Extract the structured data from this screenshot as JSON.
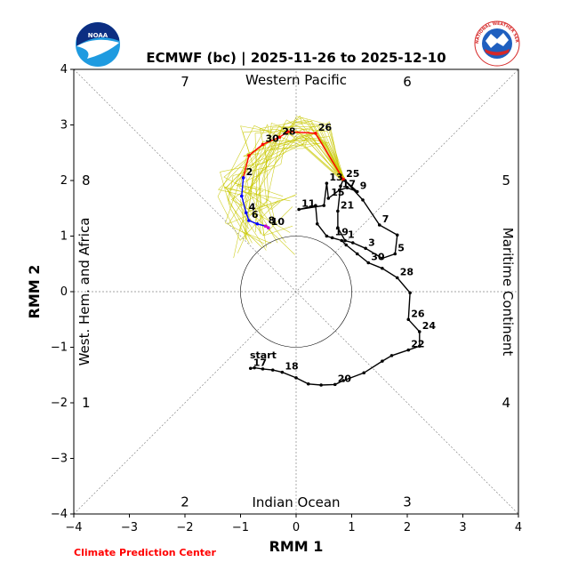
{
  "chart_data": {
    "type": "line",
    "title": "ECMWF (bc) | 2025-11-26 to 2025-12-10",
    "xlabel": "RMM 1",
    "ylabel": "RMM 2",
    "xlim": [
      -4,
      4
    ],
    "ylim": [
      -4,
      4
    ],
    "xticks": [
      "−4",
      "−3",
      "−2",
      "−1",
      "0",
      "1",
      "2",
      "3",
      "4"
    ],
    "yticks": [
      "−4",
      "−3",
      "−2",
      "−1",
      "0",
      "1",
      "2",
      "3",
      "4"
    ],
    "unit_circle_radius": 1,
    "phase_labels": [
      {
        "text": "1",
        "x": -3.78,
        "y": -2.0
      },
      {
        "text": "2",
        "x": -2.0,
        "y": -3.78
      },
      {
        "text": "3",
        "x": 2.0,
        "y": -3.78
      },
      {
        "text": "4",
        "x": 3.78,
        "y": -2.0
      },
      {
        "text": "5",
        "x": 3.78,
        "y": 2.0
      },
      {
        "text": "6",
        "x": 2.0,
        "y": 3.78
      },
      {
        "text": "7",
        "x": -2.0,
        "y": 3.78
      },
      {
        "text": "8",
        "x": -3.78,
        "y": 2.0
      }
    ],
    "region_labels": {
      "top": "Western Pacific",
      "bottom": "Indian Ocean",
      "left": "West. Hem. and Africa",
      "right": "Maritime Continent"
    },
    "start_label": "start",
    "series": [
      {
        "name": "observed",
        "color": "#000000",
        "points": [
          [
            -0.82,
            -1.38
          ],
          [
            -0.75,
            -1.37
          ],
          [
            -0.6,
            -1.39
          ],
          [
            -0.42,
            -1.41
          ],
          [
            -0.25,
            -1.45
          ],
          [
            0.0,
            -1.55
          ],
          [
            0.22,
            -1.66
          ],
          [
            0.45,
            -1.68
          ],
          [
            0.7,
            -1.67
          ],
          [
            0.85,
            -1.6
          ],
          [
            1.22,
            -1.46
          ],
          [
            1.55,
            -1.25
          ],
          [
            1.72,
            -1.15
          ],
          [
            2.02,
            -1.05
          ],
          [
            2.22,
            -0.98
          ],
          [
            2.22,
            -0.72
          ],
          [
            2.02,
            -0.5
          ],
          [
            2.05,
            -0.02
          ],
          [
            1.82,
            0.25
          ],
          [
            1.55,
            0.42
          ],
          [
            1.3,
            0.52
          ],
          [
            1.1,
            0.68
          ],
          [
            0.9,
            0.84
          ],
          [
            0.82,
            0.92
          ],
          [
            0.65,
            0.97
          ],
          [
            0.55,
            1.0
          ],
          [
            0.38,
            1.22
          ],
          [
            0.35,
            1.55
          ],
          [
            0.05,
            1.48
          ],
          [
            0.5,
            1.55
          ],
          [
            0.55,
            1.95
          ],
          [
            0.58,
            1.68
          ],
          [
            0.78,
            1.83
          ],
          [
            0.92,
            1.87
          ],
          [
            1.1,
            1.8
          ],
          [
            0.88,
            2.0
          ],
          [
            1.2,
            1.65
          ],
          [
            1.5,
            1.2
          ],
          [
            1.82,
            1.02
          ],
          [
            1.78,
            0.68
          ],
          [
            1.55,
            0.6
          ],
          [
            1.25,
            0.78
          ],
          [
            1.02,
            0.88
          ],
          [
            0.88,
            0.92
          ],
          [
            0.75,
            1.15
          ],
          [
            0.75,
            1.45
          ],
          [
            0.8,
            1.9
          ],
          [
            0.85,
            2.02
          ]
        ],
        "labels": [
          {
            "text": "17",
            "i": 0
          },
          {
            "text": "18",
            "i": 4
          },
          {
            "text": "20",
            "i": 8
          },
          {
            "text": "22",
            "i": 13
          },
          {
            "text": "24",
            "i": 15
          },
          {
            "text": "26",
            "i": 16
          },
          {
            "text": "28",
            "i": 18
          },
          {
            "text": "30",
            "i": 20
          },
          {
            "text": "19",
            "i": 24
          },
          {
            "text": "11",
            "i": 28
          },
          {
            "text": "13",
            "i": 30
          },
          {
            "text": "15",
            "i": 31
          },
          {
            "text": "17",
            "i": 32
          },
          {
            "text": "9",
            "i": 34
          },
          {
            "text": "7",
            "i": 37
          },
          {
            "text": "5",
            "i": 39
          },
          {
            "text": "3",
            "i": 41
          },
          {
            "text": "1",
            "i": 43
          },
          {
            "text": "21",
            "i": 45
          },
          {
            "text": "25",
            "i": 47
          }
        ]
      },
      {
        "name": "forecast-nov",
        "color": "#ff0000",
        "points": [
          [
            0.85,
            2.02
          ],
          [
            0.35,
            2.85
          ],
          [
            -0.15,
            2.88
          ],
          [
            -0.3,
            2.78
          ],
          [
            -0.6,
            2.65
          ],
          [
            -0.85,
            2.45
          ],
          [
            -0.95,
            2.05
          ]
        ],
        "labels": [
          {
            "text": "26",
            "i": 1
          },
          {
            "text": "28",
            "i": 3
          },
          {
            "text": "30",
            "i": 4
          }
        ]
      },
      {
        "name": "forecast-dec",
        "color": "#0000ff",
        "points": [
          [
            -0.95,
            2.05
          ],
          [
            -0.98,
            1.72
          ],
          [
            -0.9,
            1.42
          ],
          [
            -0.85,
            1.28
          ],
          [
            -0.7,
            1.22
          ],
          [
            -0.55,
            1.18
          ],
          [
            -0.5,
            1.15
          ]
        ],
        "labels": [
          {
            "text": "2",
            "i": 0
          },
          {
            "text": "4",
            "i": 2
          },
          {
            "text": "6",
            "i": 3
          },
          {
            "text": "8",
            "i": 5
          }
        ]
      },
      {
        "name": "forecast-end",
        "color": "#cc00cc",
        "points": [
          [
            -0.55,
            1.18
          ],
          [
            -0.5,
            1.15
          ]
        ],
        "labels": [
          {
            "text": "10",
            "i": 1
          }
        ]
      }
    ],
    "ensemble": {
      "color": "#c8c800",
      "members": 30,
      "center_path": [
        [
          0.85,
          2.02
        ],
        [
          0.35,
          2.85
        ],
        [
          -0.15,
          2.88
        ],
        [
          -0.6,
          2.65
        ],
        [
          -0.95,
          2.05
        ],
        [
          -0.9,
          1.42
        ],
        [
          -0.55,
          1.18
        ]
      ]
    }
  },
  "footer": {
    "credit": "Climate Prediction Center"
  },
  "logos": {
    "noaa_text": "NOAA",
    "nws_text": "NATIONAL WEATHER SERVICE"
  }
}
